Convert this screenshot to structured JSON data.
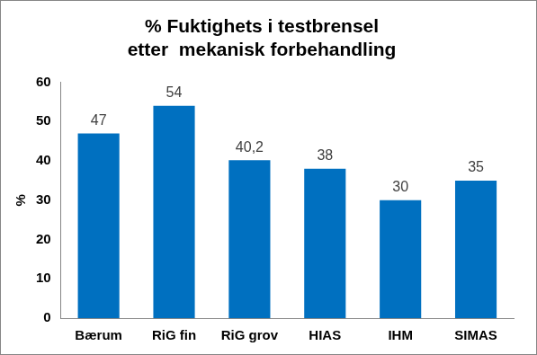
{
  "chart_data": {
    "type": "bar",
    "title": [
      "% Fuktighets i testbrensel",
      "etter  mekanisk forbehandling"
    ],
    "ylabel": "%",
    "categories": [
      "Bærum",
      "RiG fin",
      "RiG grov",
      "HIAS",
      "IHM",
      "SIMAS"
    ],
    "values": [
      47,
      54,
      40.2,
      38,
      30,
      35
    ],
    "value_labels": [
      "47",
      "54",
      "40,2",
      "38",
      "30",
      "35"
    ],
    "color": "#0070c0",
    "ylim": [
      0,
      60
    ],
    "yticks": [
      0,
      10,
      20,
      30,
      40,
      50,
      60
    ],
    "grid": false,
    "data_labels": true
  }
}
